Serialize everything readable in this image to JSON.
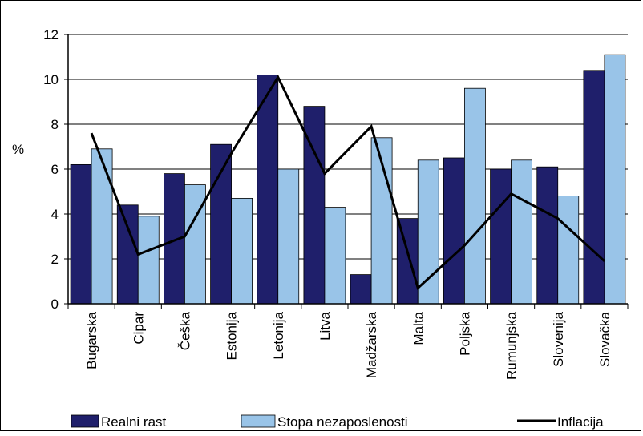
{
  "chart_data": {
    "type": "bar",
    "ylabel": "%",
    "ylim": [
      0,
      12
    ],
    "yticks": [
      "0",
      "2",
      "4",
      "6",
      "8",
      "10",
      "12"
    ],
    "categories": [
      "Bugarska",
      "Cipar",
      "Češka",
      "Estonija",
      "Letonija",
      "Litva",
      "Madžarska",
      "Malta",
      "Poljska",
      "Rumunjska",
      "Slovenija",
      "Slovačka"
    ],
    "series": [
      {
        "name": "Realni rast",
        "type": "bar",
        "color": "#1f1f6b",
        "values": [
          6.2,
          4.4,
          5.8,
          7.1,
          10.2,
          8.8,
          1.3,
          3.8,
          6.5,
          6.0,
          6.1,
          10.4
        ]
      },
      {
        "name": "Stopa nezaposlenosti",
        "type": "bar",
        "color": "#99c4e8",
        "values": [
          6.9,
          3.9,
          5.3,
          4.7,
          6.0,
          4.3,
          7.4,
          6.4,
          9.6,
          6.4,
          4.8,
          11.1
        ]
      },
      {
        "name": "Inflacija",
        "type": "line",
        "color": "#000000",
        "values": [
          7.6,
          2.2,
          3.0,
          6.7,
          10.1,
          5.8,
          7.9,
          0.7,
          2.6,
          4.9,
          3.8,
          1.9
        ]
      }
    ],
    "grid": "horizontal",
    "legend_position": "bottom"
  }
}
